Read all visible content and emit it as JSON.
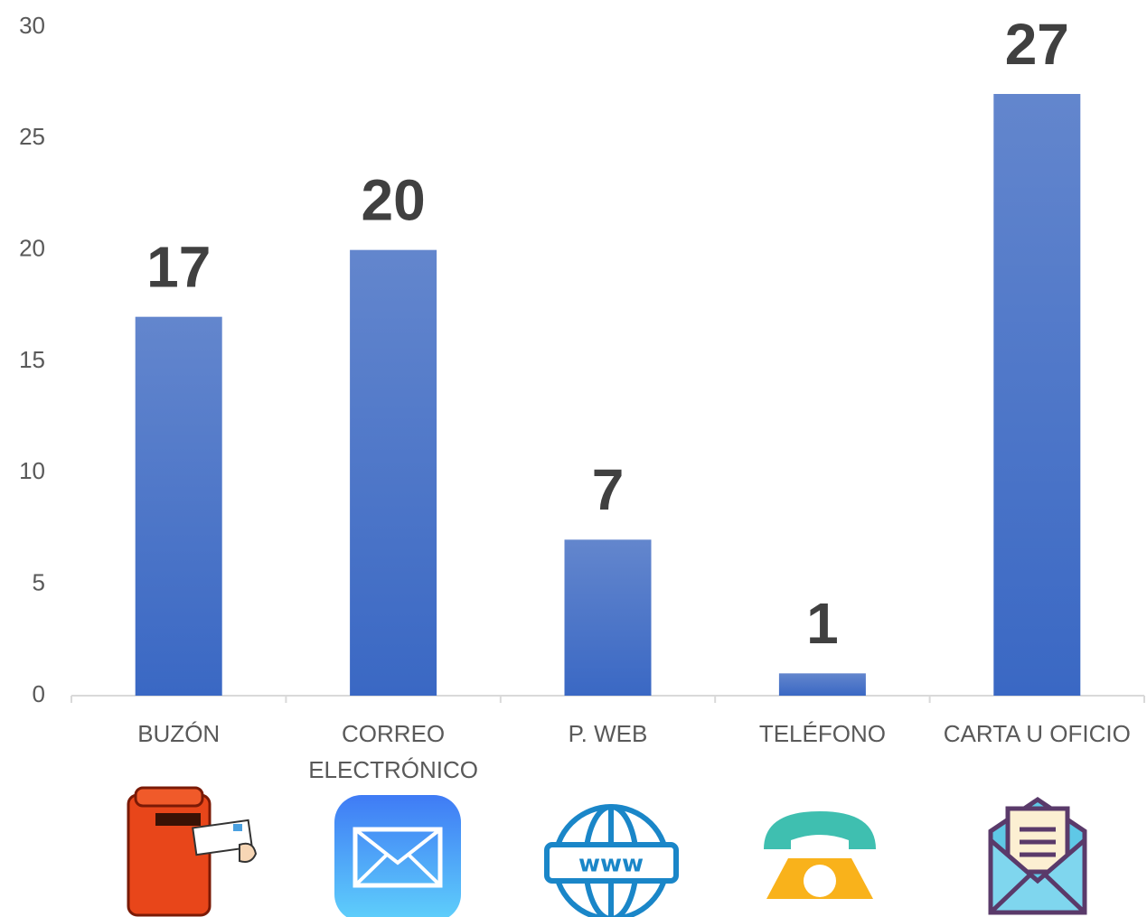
{
  "chart_data": {
    "type": "bar",
    "categories": [
      "BUZÓN",
      "CORREO ELECTRÓNICO",
      "P. WEB",
      "TELÉFONO",
      "CARTA U OFICIO"
    ],
    "values": [
      17,
      20,
      7,
      1,
      27
    ],
    "color": "#3a68c4",
    "ylim": [
      0,
      30
    ],
    "yticks": [
      0,
      5,
      10,
      15,
      20,
      25,
      30
    ],
    "grid": false
  }
}
